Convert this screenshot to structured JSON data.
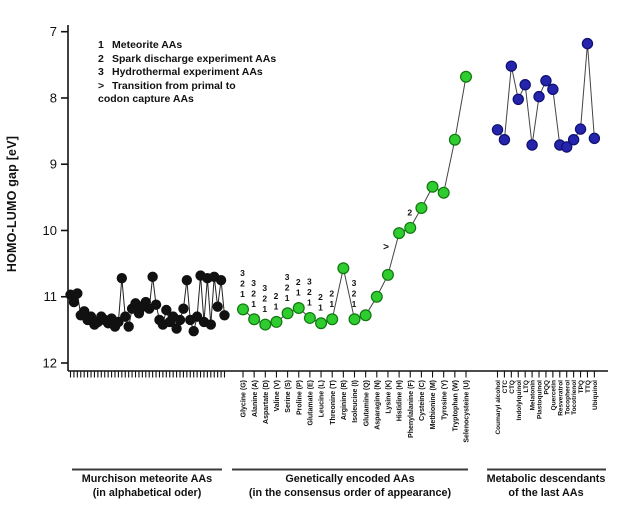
{
  "figure": {
    "legend": {
      "items": [
        {
          "key": "1",
          "text": "Meteorite AAs"
        },
        {
          "key": "2",
          "text": "Spark discharge experiment AAs"
        },
        {
          "key": "3",
          "text": "Hydrothermal experiment AAs"
        },
        {
          "key": ">",
          "text": "Transition from primal to"
        },
        {
          "key": "",
          "text": "codon capture AAs"
        }
      ]
    },
    "group_brackets": [
      {
        "line1": "Murchison meteorite AAs",
        "line2": "(in alphabetical oder)"
      },
      {
        "line1": "Genetically encoded AAs",
        "line2": "(in the consensus order of appearance)"
      },
      {
        "line1": "Metabolic descendants",
        "line2": "of the last AAs"
      }
    ]
  },
  "chart_data": {
    "type": "scatter",
    "title": "",
    "xlabel": "",
    "ylabel": "HOMO-LUMO gap [eV]",
    "y_axis": {
      "min": 7,
      "max": 12,
      "inverted": true,
      "tick_labels": [
        "7",
        "8",
        "9",
        "10",
        "11",
        "12"
      ]
    },
    "grid": false,
    "legend_position": "top-left",
    "series": [
      {
        "name": "Murchison meteorite AAs",
        "group_caption": "Murchison meteorite AAs (in alphabetical oder)",
        "point_color": "#111111",
        "line_color": "#222222",
        "x_tick_labels_shown": false,
        "values": [
          10.97,
          11.08,
          10.95,
          11.28,
          11.22,
          11.35,
          11.3,
          11.42,
          11.38,
          11.3,
          11.35,
          11.4,
          11.33,
          11.45,
          11.38,
          10.72,
          11.3,
          11.45,
          11.18,
          11.1,
          11.25,
          11.15,
          11.08,
          11.18,
          10.7,
          11.12,
          11.35,
          11.42,
          11.2,
          11.38,
          11.3,
          11.48,
          11.35,
          11.18,
          10.75,
          11.35,
          11.52,
          11.3,
          10.68,
          11.38,
          10.72,
          11.42,
          10.7,
          11.15,
          10.75,
          11.28
        ]
      },
      {
        "name": "Genetically encoded AAs",
        "group_caption": "Genetically encoded AAs (in the consensus order of appearance)",
        "point_color": "#2ECC2E",
        "point_stroke": "#117711",
        "line_color": "#444444",
        "x_tick_labels_shown": true,
        "points": [
          {
            "label": "Glycine (G)",
            "value": 11.19,
            "annotations": [
              "3",
              "2",
              "1"
            ]
          },
          {
            "label": "Alanine (A)",
            "value": 11.34,
            "annotations": [
              "3",
              "2",
              "1"
            ]
          },
          {
            "label": "Aspartate (D)",
            "value": 11.42,
            "annotations": [
              "3",
              "2",
              "1"
            ]
          },
          {
            "label": "Valine (V)",
            "value": 11.38,
            "annotations": [
              "2",
              "1"
            ]
          },
          {
            "label": "Serine (S)",
            "value": 11.25,
            "annotations": [
              "3",
              "2",
              "1"
            ]
          },
          {
            "label": "Proline (P)",
            "value": 11.17,
            "annotations": [
              "2",
              "1"
            ]
          },
          {
            "label": "Glutamate (E)",
            "value": 11.32,
            "annotations": [
              "3",
              "2",
              "1"
            ]
          },
          {
            "label": "Leucine (L)",
            "value": 11.4,
            "annotations": [
              "2",
              "1"
            ]
          },
          {
            "label": "Threonine (T)",
            "value": 11.34,
            "annotations": [
              "2",
              "1"
            ]
          },
          {
            "label": "Arginine (R)",
            "value": 10.57,
            "annotations": []
          },
          {
            "label": "Isoleucine (I)",
            "value": 11.34,
            "annotations": [
              "3",
              "2",
              "1"
            ]
          },
          {
            "label": "Glutamine (Q)",
            "value": 11.28,
            "annotations": []
          },
          {
            "label": "Asparagine (N)",
            "value": 11.0,
            "annotations": []
          },
          {
            "label": "Lysine (K)",
            "value": 10.67,
            "annotations": []
          },
          {
            "label": "Histidine (H)",
            "value": 10.04,
            "annotations": [],
            "side_marker": ">"
          },
          {
            "label": "Phenylalanine (F)",
            "value": 9.96,
            "annotations": [
              "2"
            ]
          },
          {
            "label": "Cysteine (C)",
            "value": 9.66,
            "annotations": []
          },
          {
            "label": "Methionine (M)",
            "value": 9.34,
            "annotations": []
          },
          {
            "label": "Tyrosine (Y)",
            "value": 9.43,
            "annotations": []
          },
          {
            "label": "Tryptophan (W)",
            "value": 8.63,
            "annotations": []
          },
          {
            "label": "Selenocysteine (U)",
            "value": 7.68,
            "annotations": []
          }
        ]
      },
      {
        "name": "Metabolic descendants of the last AAs",
        "group_caption": "Metabolic descendants of the last AAs",
        "point_color": "#2424AC",
        "point_stroke": "#101070",
        "line_color": "#444444",
        "x_tick_labels_shown": true,
        "points": [
          {
            "label": "Coumaryl alcohol",
            "value": 8.48
          },
          {
            "label": "CTC",
            "value": 8.63
          },
          {
            "label": "CTQ",
            "value": 7.52
          },
          {
            "label": "Indolylquinol",
            "value": 8.02
          },
          {
            "label": "LTQ",
            "value": 7.8
          },
          {
            "label": "Melatonin",
            "value": 8.71
          },
          {
            "label": "Plastoquinol",
            "value": 7.98
          },
          {
            "label": "PQQ",
            "value": 7.74
          },
          {
            "label": "Quercetin",
            "value": 7.87
          },
          {
            "label": "Resveratrol",
            "value": 8.71
          },
          {
            "label": "Tocopherol",
            "value": 8.74
          },
          {
            "label": "Tocotrienol",
            "value": 8.63
          },
          {
            "label": "TPQ",
            "value": 8.47
          },
          {
            "label": "TTQ",
            "value": 7.18
          },
          {
            "label": "Ubiquinol",
            "value": 8.61
          }
        ]
      }
    ]
  }
}
